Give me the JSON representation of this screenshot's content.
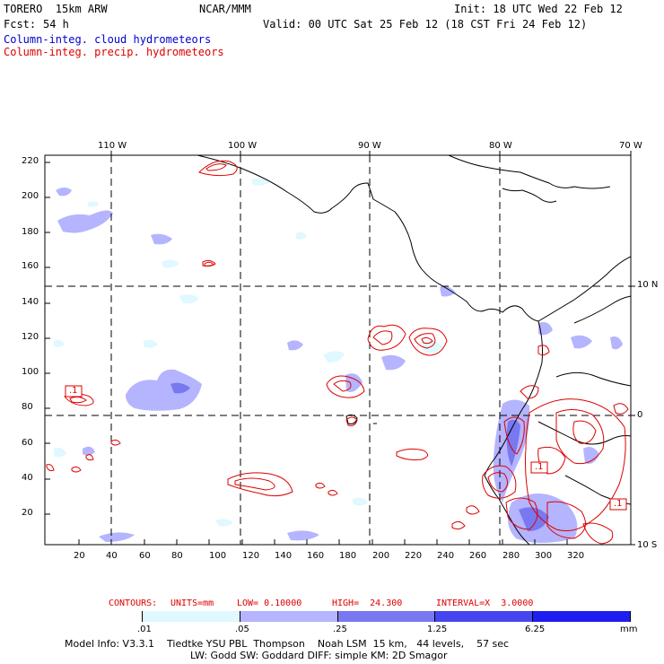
{
  "header": {
    "model": "TORERO  15km ARW",
    "org": "NCAR/MMM",
    "init": "Init: 18 UTC Wed 22 Feb 12",
    "fcst_label": "Fcst:",
    "fcst_value": "54 h",
    "valid": "Valid: 00 UTC Sat 25 Feb 12 (18 CST Fri 24 Feb 12)",
    "legend_cloud": "Column-integ. cloud hydrometeors",
    "legend_precip": "Column-integ. precip. hydrometeors"
  },
  "map": {
    "top_lon_labels": [
      "110 W",
      "100 W",
      "90 W",
      "80 W",
      "70 W"
    ],
    "right_lat_labels": [
      "10 N",
      "0",
      "10 S"
    ],
    "y_ticks": [
      "220",
      "200",
      "180",
      "160",
      "140",
      "120",
      "100",
      "80",
      "60",
      "40",
      "20"
    ],
    "x_ticks": [
      "20",
      "40",
      "60",
      "80",
      "100",
      "120",
      "140",
      "160",
      "180",
      "200",
      "220",
      "240",
      "260",
      "280",
      "300",
      "320"
    ],
    "contour_labels": [
      ".1",
      ".1",
      ".1"
    ]
  },
  "contour_info": {
    "contours": "CONTOURS:",
    "units": "UNITS=mm",
    "low": "LOW= 0.10000",
    "high": "HIGH=  24.300",
    "interval": "INTERVAL=X  3.0000"
  },
  "colorbar": {
    "labels": [
      ".01",
      ".05",
      ".25",
      "1.25",
      "6.25"
    ],
    "unit": "mm",
    "colors": [
      "#ffffff",
      "#e0f8ff",
      "#b4b4ff",
      "#7878f0",
      "#4646f0",
      "#1e1ef0"
    ]
  },
  "footer": {
    "line1": "Model Info: V3.3.1    Tiedtke YSU PBL  Thompson    Noah LSM  15 km,   44 levels,    57 sec",
    "line2": "LW: Godd SW: Goddard DIFF: simple KM: 2D Smagor"
  }
}
